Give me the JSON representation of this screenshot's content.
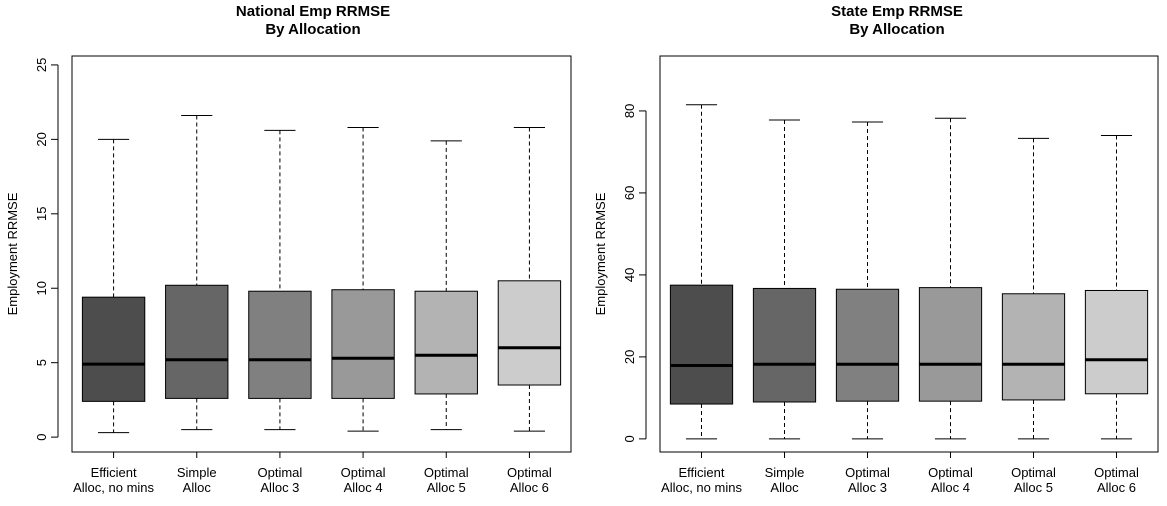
{
  "chart_data": [
    {
      "type": "boxplot",
      "title": [
        "National Emp RRMSE",
        "By Allocation"
      ],
      "ylabel": "Employment RRMSE",
      "xlabel": "",
      "ylim": [
        0,
        25
      ],
      "yticks": [
        0,
        5,
        10,
        15,
        20,
        25
      ],
      "grid": false,
      "categories": [
        [
          "Efficient",
          "Alloc, no mins"
        ],
        [
          "Simple",
          "Alloc"
        ],
        [
          "Optimal",
          "Alloc 3"
        ],
        [
          "Optimal",
          "Alloc 4"
        ],
        [
          "Optimal",
          "Alloc 5"
        ],
        [
          "Optimal",
          "Alloc 6"
        ]
      ],
      "boxes": [
        {
          "min": 0.3,
          "q1": 2.4,
          "median": 4.9,
          "q3": 9.4,
          "max": 20.0
        },
        {
          "min": 0.5,
          "q1": 2.6,
          "median": 5.2,
          "q3": 10.2,
          "max": 21.6
        },
        {
          "min": 0.5,
          "q1": 2.6,
          "median": 5.2,
          "q3": 9.8,
          "max": 20.6
        },
        {
          "min": 0.4,
          "q1": 2.6,
          "median": 5.3,
          "q3": 9.9,
          "max": 20.8
        },
        {
          "min": 0.5,
          "q1": 2.9,
          "median": 5.5,
          "q3": 9.8,
          "max": 19.9
        },
        {
          "min": 0.4,
          "q1": 3.5,
          "median": 6.0,
          "q3": 10.5,
          "max": 20.8
        }
      ],
      "colors": [
        "#4d4d4d",
        "#666666",
        "#808080",
        "#999999",
        "#b3b3b3",
        "#cccccc"
      ]
    },
    {
      "type": "boxplot",
      "title": [
        "State Emp RRMSE",
        "By Allocation"
      ],
      "ylabel": "Employment RRMSE",
      "xlabel": "",
      "ylim": [
        0,
        80
      ],
      "yticks": [
        0,
        20,
        40,
        60,
        80
      ],
      "grid": false,
      "categories": [
        [
          "Efficient",
          "Alloc, no mins"
        ],
        [
          "Simple",
          "Alloc"
        ],
        [
          "Optimal",
          "Alloc 3"
        ],
        [
          "Optimal",
          "Alloc 4"
        ],
        [
          "Optimal",
          "Alloc 5"
        ],
        [
          "Optimal",
          "Alloc 6"
        ]
      ],
      "boxes": [
        {
          "min": 0.0,
          "q1": 8.5,
          "median": 17.9,
          "q3": 37.5,
          "max": 81.5
        },
        {
          "min": 0.0,
          "q1": 9.0,
          "median": 18.2,
          "q3": 36.7,
          "max": 77.8
        },
        {
          "min": 0.0,
          "q1": 9.2,
          "median": 18.2,
          "q3": 36.5,
          "max": 77.3
        },
        {
          "min": 0.0,
          "q1": 9.2,
          "median": 18.2,
          "q3": 36.9,
          "max": 78.2
        },
        {
          "min": 0.0,
          "q1": 9.5,
          "median": 18.2,
          "q3": 35.4,
          "max": 73.3
        },
        {
          "min": 0.0,
          "q1": 11.0,
          "median": 19.3,
          "q3": 36.2,
          "max": 74.0
        }
      ],
      "colors": [
        "#4d4d4d",
        "#666666",
        "#808080",
        "#999999",
        "#b3b3b3",
        "#cccccc"
      ]
    }
  ]
}
